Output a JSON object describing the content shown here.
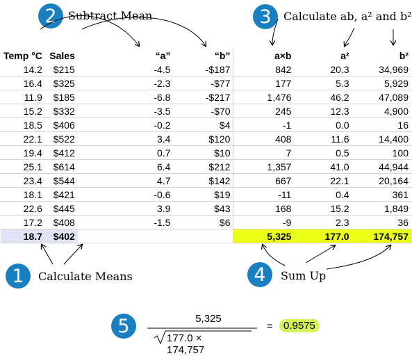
{
  "steps": {
    "s1": {
      "num": "1",
      "label": "Calculate Means"
    },
    "s2": {
      "num": "2",
      "label": "Subtract Mean"
    },
    "s3": {
      "num": "3",
      "label": "Calculate ab, a² and b²"
    },
    "s4": {
      "num": "4",
      "label": "Sum Up"
    },
    "s5": {
      "num": "5"
    }
  },
  "table": {
    "headers": [
      "Temp °C",
      "Sales",
      "“a”",
      "“b”",
      "a×b",
      "a²",
      "b²"
    ],
    "rows": [
      [
        "14.2",
        "$215",
        "-4.5",
        "-$187",
        "842",
        "20.3",
        "34,969"
      ],
      [
        "16.4",
        "$325",
        "-2.3",
        "-$77",
        "177",
        "5.3",
        "5,929"
      ],
      [
        "11.9",
        "$185",
        "-6.8",
        "-$217",
        "1,476",
        "46.2",
        "47,089"
      ],
      [
        "15.2",
        "$332",
        "-3.5",
        "-$70",
        "245",
        "12.3",
        "4,900"
      ],
      [
        "18.5",
        "$406",
        "-0.2",
        "$4",
        "-1",
        "0.0",
        "16"
      ],
      [
        "22.1",
        "$522",
        "3.4",
        "$120",
        "408",
        "11.6",
        "14,400"
      ],
      [
        "19.4",
        "$412",
        "0.7",
        "$10",
        "7",
        "0.5",
        "100"
      ],
      [
        "25.1",
        "$614",
        "6.4",
        "$212",
        "1,357",
        "41.0",
        "44,944"
      ],
      [
        "23.4",
        "$544",
        "4.7",
        "$142",
        "667",
        "22.1",
        "20,164"
      ],
      [
        "18.1",
        "$421",
        "-0.6",
        "$19",
        "-11",
        "0.4",
        "361"
      ],
      [
        "22.6",
        "$445",
        "3.9",
        "$43",
        "168",
        "15.2",
        "1,849"
      ],
      [
        "17.2",
        "$408",
        "-1.5",
        "$6",
        "-9",
        "2.3",
        "36"
      ]
    ],
    "means": {
      "temp": "18.7",
      "sales": "$402"
    },
    "sums": {
      "ab": "5,325",
      "a2": "177.0",
      "b2": "174,757"
    }
  },
  "formula": {
    "numerator": "5,325",
    "denominator": "177.0 × 174,757",
    "equals": "=",
    "result": "0.9575"
  },
  "colors": {
    "badge": "#1a7fc1",
    "sum_highlight": "#e9ff14",
    "mean_highlight": "#e3e3f7",
    "result_highlight": "#d6f25a"
  }
}
